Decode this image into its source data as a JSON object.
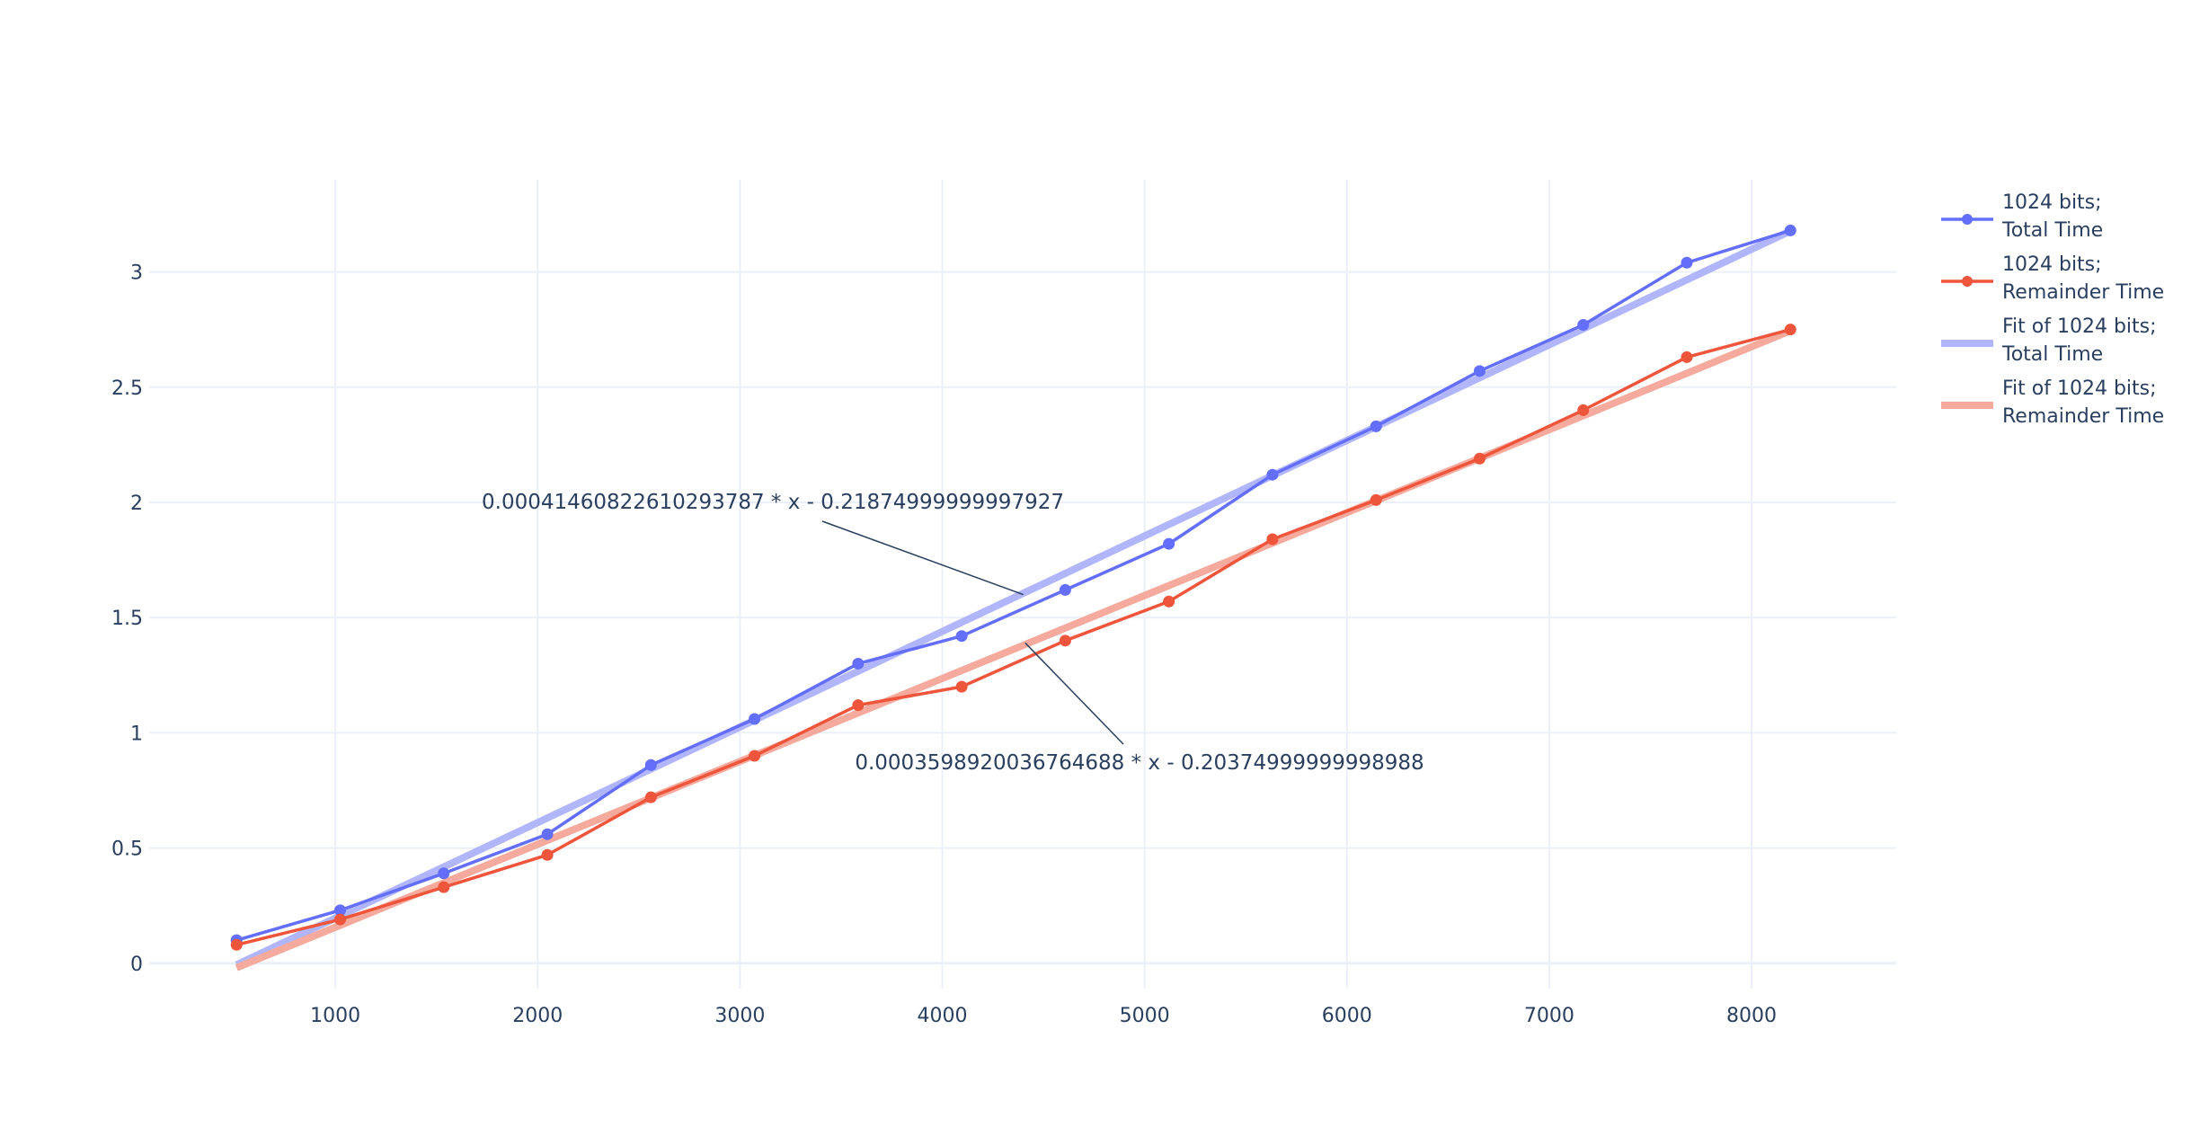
{
  "chart_data": {
    "type": "line",
    "x": [
      512,
      1024,
      1536,
      2048,
      2560,
      3072,
      3584,
      4096,
      4608,
      5120,
      5632,
      6144,
      6656,
      7168,
      7680,
      8192
    ],
    "series": [
      {
        "name": "1024 bits;",
        "name_line2": "Total Time",
        "color": "#636efa",
        "mode": "lines+markers",
        "values": [
          0.1,
          0.23,
          0.39,
          0.56,
          0.86,
          1.06,
          1.3,
          1.42,
          1.62,
          1.82,
          2.12,
          2.33,
          2.57,
          2.77,
          3.04,
          3.18
        ]
      },
      {
        "name": "1024 bits;",
        "name_line2": "Remainder Time",
        "color": "#ef553b",
        "mode": "lines+markers",
        "values": [
          0.08,
          0.19,
          0.33,
          0.47,
          0.72,
          0.9,
          1.12,
          1.2,
          1.4,
          1.57,
          1.84,
          2.01,
          2.19,
          2.4,
          2.63,
          2.75
        ]
      },
      {
        "name": "Fit of 1024 bits;",
        "name_line2": "Total Time",
        "color": "#b1b6fc",
        "mode": "lines",
        "slope": 0.00041460822610293787,
        "intercept": -0.21874999999997927
      },
      {
        "name": "Fit of 1024 bits;",
        "name_line2": "Remainder Time",
        "color": "#f5aa9d",
        "mode": "lines",
        "slope": 0.0003598920036764688,
        "intercept": -0.20374999999998988
      }
    ],
    "xticks": [
      1000,
      2000,
      3000,
      4000,
      5000,
      6000,
      7000,
      8000
    ],
    "xtick_labels": [
      "1000",
      "2000",
      "3000",
      "4000",
      "5000",
      "6000",
      "7000",
      "8000"
    ],
    "yticks": [
      0,
      0.5,
      1,
      1.5,
      2,
      2.5,
      3
    ],
    "ytick_labels": [
      "0",
      "0.5",
      "1",
      "1.5",
      "2",
      "2.5",
      "3"
    ],
    "xlim": [
      80,
      8715
    ],
    "ylim": [
      -0.11,
      3.4
    ],
    "grid": true,
    "legend_position": "right",
    "annotations": [
      {
        "text": "0.00041460822610293787 * x - 0.21874999999997927",
        "x": 4400,
        "y": 1.6
      },
      {
        "text": "0.0003598920036764688 * x - 0.20374999999998988",
        "x": 4410,
        "y": 1.39
      }
    ]
  }
}
